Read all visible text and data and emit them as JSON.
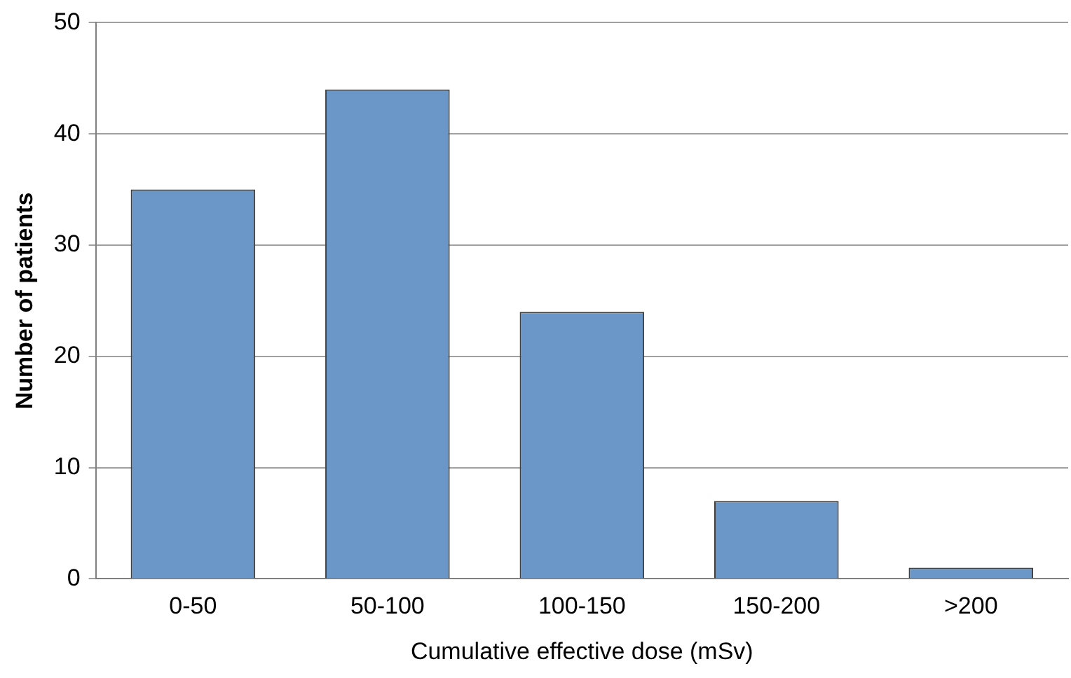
{
  "chart_data": {
    "type": "bar",
    "xlabel": "Cumulative effective dose (mSv)",
    "ylabel": "Number of patients",
    "categories": [
      "0-50",
      "50-100",
      "100-150",
      "150-200",
      ">200"
    ],
    "values": [
      35,
      44,
      24,
      7,
      1
    ],
    "color": "#6a96c8",
    "ylim": [
      0,
      50
    ],
    "yticks": [
      0,
      10,
      20,
      30,
      40,
      50
    ],
    "grid": "y"
  }
}
